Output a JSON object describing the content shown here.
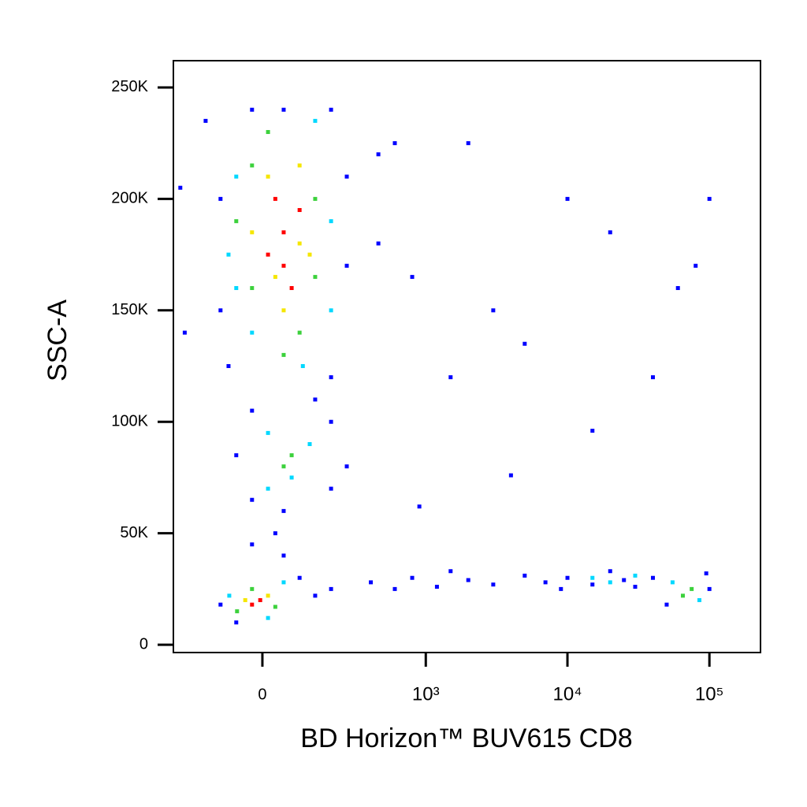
{
  "chart_data": {
    "type": "scatter",
    "xlabel": "BD Horizon™ BUV615 CD8",
    "ylabel": "SSC-A",
    "xscale": "asinh",
    "xscale_cofactor": 142,
    "xlim": [
      -284,
      229000
    ],
    "xticks": [
      0,
      {
        "value": 1000,
        "label": "10³"
      },
      {
        "value": 10000,
        "label": "10⁴"
      },
      {
        "value": 100000,
        "label": "10⁵"
      }
    ],
    "ylim": [
      -3500,
      262000
    ],
    "yticks": [
      0,
      {
        "value": 50000,
        "label": "50K"
      },
      {
        "value": 100000,
        "label": "100K"
      },
      {
        "value": 150000,
        "label": "150K"
      },
      {
        "value": 200000,
        "label": "200K"
      },
      {
        "value": 250000,
        "label": "250K"
      }
    ],
    "grid": false,
    "series": [
      {
        "color": "#0000ff",
        "x": [
          -104,
          261,
          -104,
          261,
          455,
          455,
          -82,
          193,
          50,
          -24,
          193,
          600,
          -24,
          193,
          -62,
          261,
          137,
          -24,
          193,
          91,
          -104,
          137,
          50,
          -62,
          193,
          30,
          50,
          -24,
          40000,
          95000,
          50000,
          100000,
          400,
          800,
          1200,
          2000,
          3000,
          5000,
          7000,
          10000,
          15000,
          20000,
          25000,
          30000,
          1500,
          9000,
          600,
          3000,
          10000,
          20000,
          80000,
          5000,
          1500,
          800,
          40000,
          15000,
          4000,
          -250,
          -230,
          -150,
          60000,
          100000,
          2000,
          900
        ],
        "values": [
          200000,
          210000,
          150000,
          170000,
          220000,
          180000,
          125000,
          120000,
          240000,
          240000,
          240000,
          225000,
          105000,
          100000,
          85000,
          80000,
          110000,
          65000,
          70000,
          30000,
          18000,
          22000,
          40000,
          10000,
          25000,
          50000,
          60000,
          45000,
          30000,
          32000,
          18000,
          25000,
          28000,
          30000,
          26000,
          29000,
          27000,
          31000,
          28000,
          30000,
          27000,
          33000,
          29000,
          26000,
          33000,
          25000,
          25000,
          150000,
          200000,
          185000,
          170000,
          135000,
          120000,
          165000,
          120000,
          96000,
          76000,
          205000,
          140000,
          235000,
          160000,
          200000,
          225000,
          62000
        ]
      },
      {
        "color": "#00d8ff",
        "x": [
          -62,
          193,
          -62,
          137,
          -24,
          193,
          -82,
          100,
          13,
          120,
          70,
          13,
          50,
          -80,
          13,
          55000,
          85000,
          15000,
          20000,
          30000
        ],
        "values": [
          210000,
          190000,
          160000,
          235000,
          140000,
          150000,
          175000,
          125000,
          95000,
          90000,
          75000,
          70000,
          28000,
          22000,
          12000,
          28000,
          20000,
          30000,
          28000,
          31000
        ]
      },
      {
        "color": "#3cd13c",
        "x": [
          -24,
          137,
          -24,
          91,
          13,
          137,
          -62,
          50,
          70,
          50,
          30,
          -24,
          -60,
          65000,
          75000
        ],
        "values": [
          215000,
          200000,
          160000,
          140000,
          230000,
          165000,
          190000,
          130000,
          85000,
          80000,
          17000,
          25000,
          15000,
          22000,
          25000
        ]
      },
      {
        "color": "#f5e600",
        "x": [
          13,
          91,
          -24,
          50,
          91,
          30,
          120,
          13,
          -40
        ],
        "values": [
          210000,
          180000,
          185000,
          150000,
          215000,
          165000,
          175000,
          22000,
          20000
        ]
      },
      {
        "color": "#ff0000",
        "x": [
          13,
          50,
          50,
          91,
          30,
          70,
          -5,
          -24
        ],
        "values": [
          175000,
          185000,
          170000,
          195000,
          200000,
          160000,
          20000,
          18000
        ]
      }
    ]
  }
}
